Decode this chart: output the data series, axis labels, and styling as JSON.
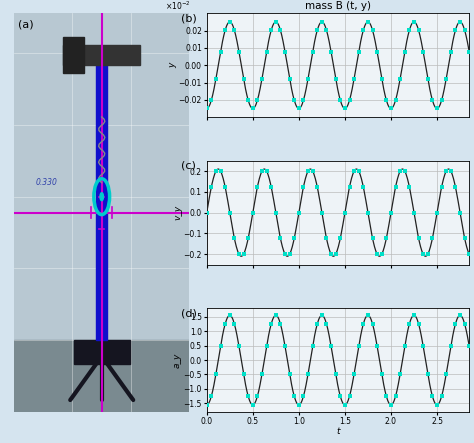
{
  "title_b": "mass B (t, y)",
  "xlabel": "t",
  "ylabel_b": "y",
  "ylabel_c": "v_y",
  "ylabel_d": "a_y",
  "label_a": "(a)",
  "label_b": "(b)",
  "label_c": "(c)",
  "label_d": "(d)",
  "t_start": 0,
  "t_end": 2.85,
  "freq": 2.0,
  "amp_y": 0.025,
  "amp_v": 0.21,
  "amp_a": 1.55,
  "phase_y": -1.5707963,
  "ylim_b": [
    -0.03,
    0.03
  ],
  "ylim_c": [
    -0.25,
    0.25
  ],
  "ylim_d": [
    -1.8,
    1.8
  ],
  "yticks_b": [
    -0.02,
    -0.01,
    0,
    0.01,
    0.02
  ],
  "yticks_c": [
    -0.2,
    -0.1,
    0,
    0.1,
    0.2
  ],
  "yticks_d": [
    -1.5,
    -1.0,
    -0.5,
    0,
    0.5,
    1.0,
    1.5
  ],
  "xticks": [
    0,
    0.5,
    1.0,
    1.5,
    2.0,
    2.5
  ],
  "xlim": [
    0,
    2.85
  ],
  "bg_color": "#d5e4ef",
  "plot_bg": "#eef3f7",
  "grid_color": "#bbbbbb",
  "line_color": "#222222",
  "marker_color": "#00e0c8",
  "marker_size": 3.5,
  "n_markers": 58,
  "wall_color": "#b8c8d2",
  "floor_color": "#7a8a90",
  "rod_color": "#1010cc",
  "base_color": "#151520",
  "cross_color": "#cc00cc",
  "spring_color": "#888888",
  "weight_color": "#00cccc",
  "meas_color": "#3344aa",
  "meas_text": "0.330"
}
